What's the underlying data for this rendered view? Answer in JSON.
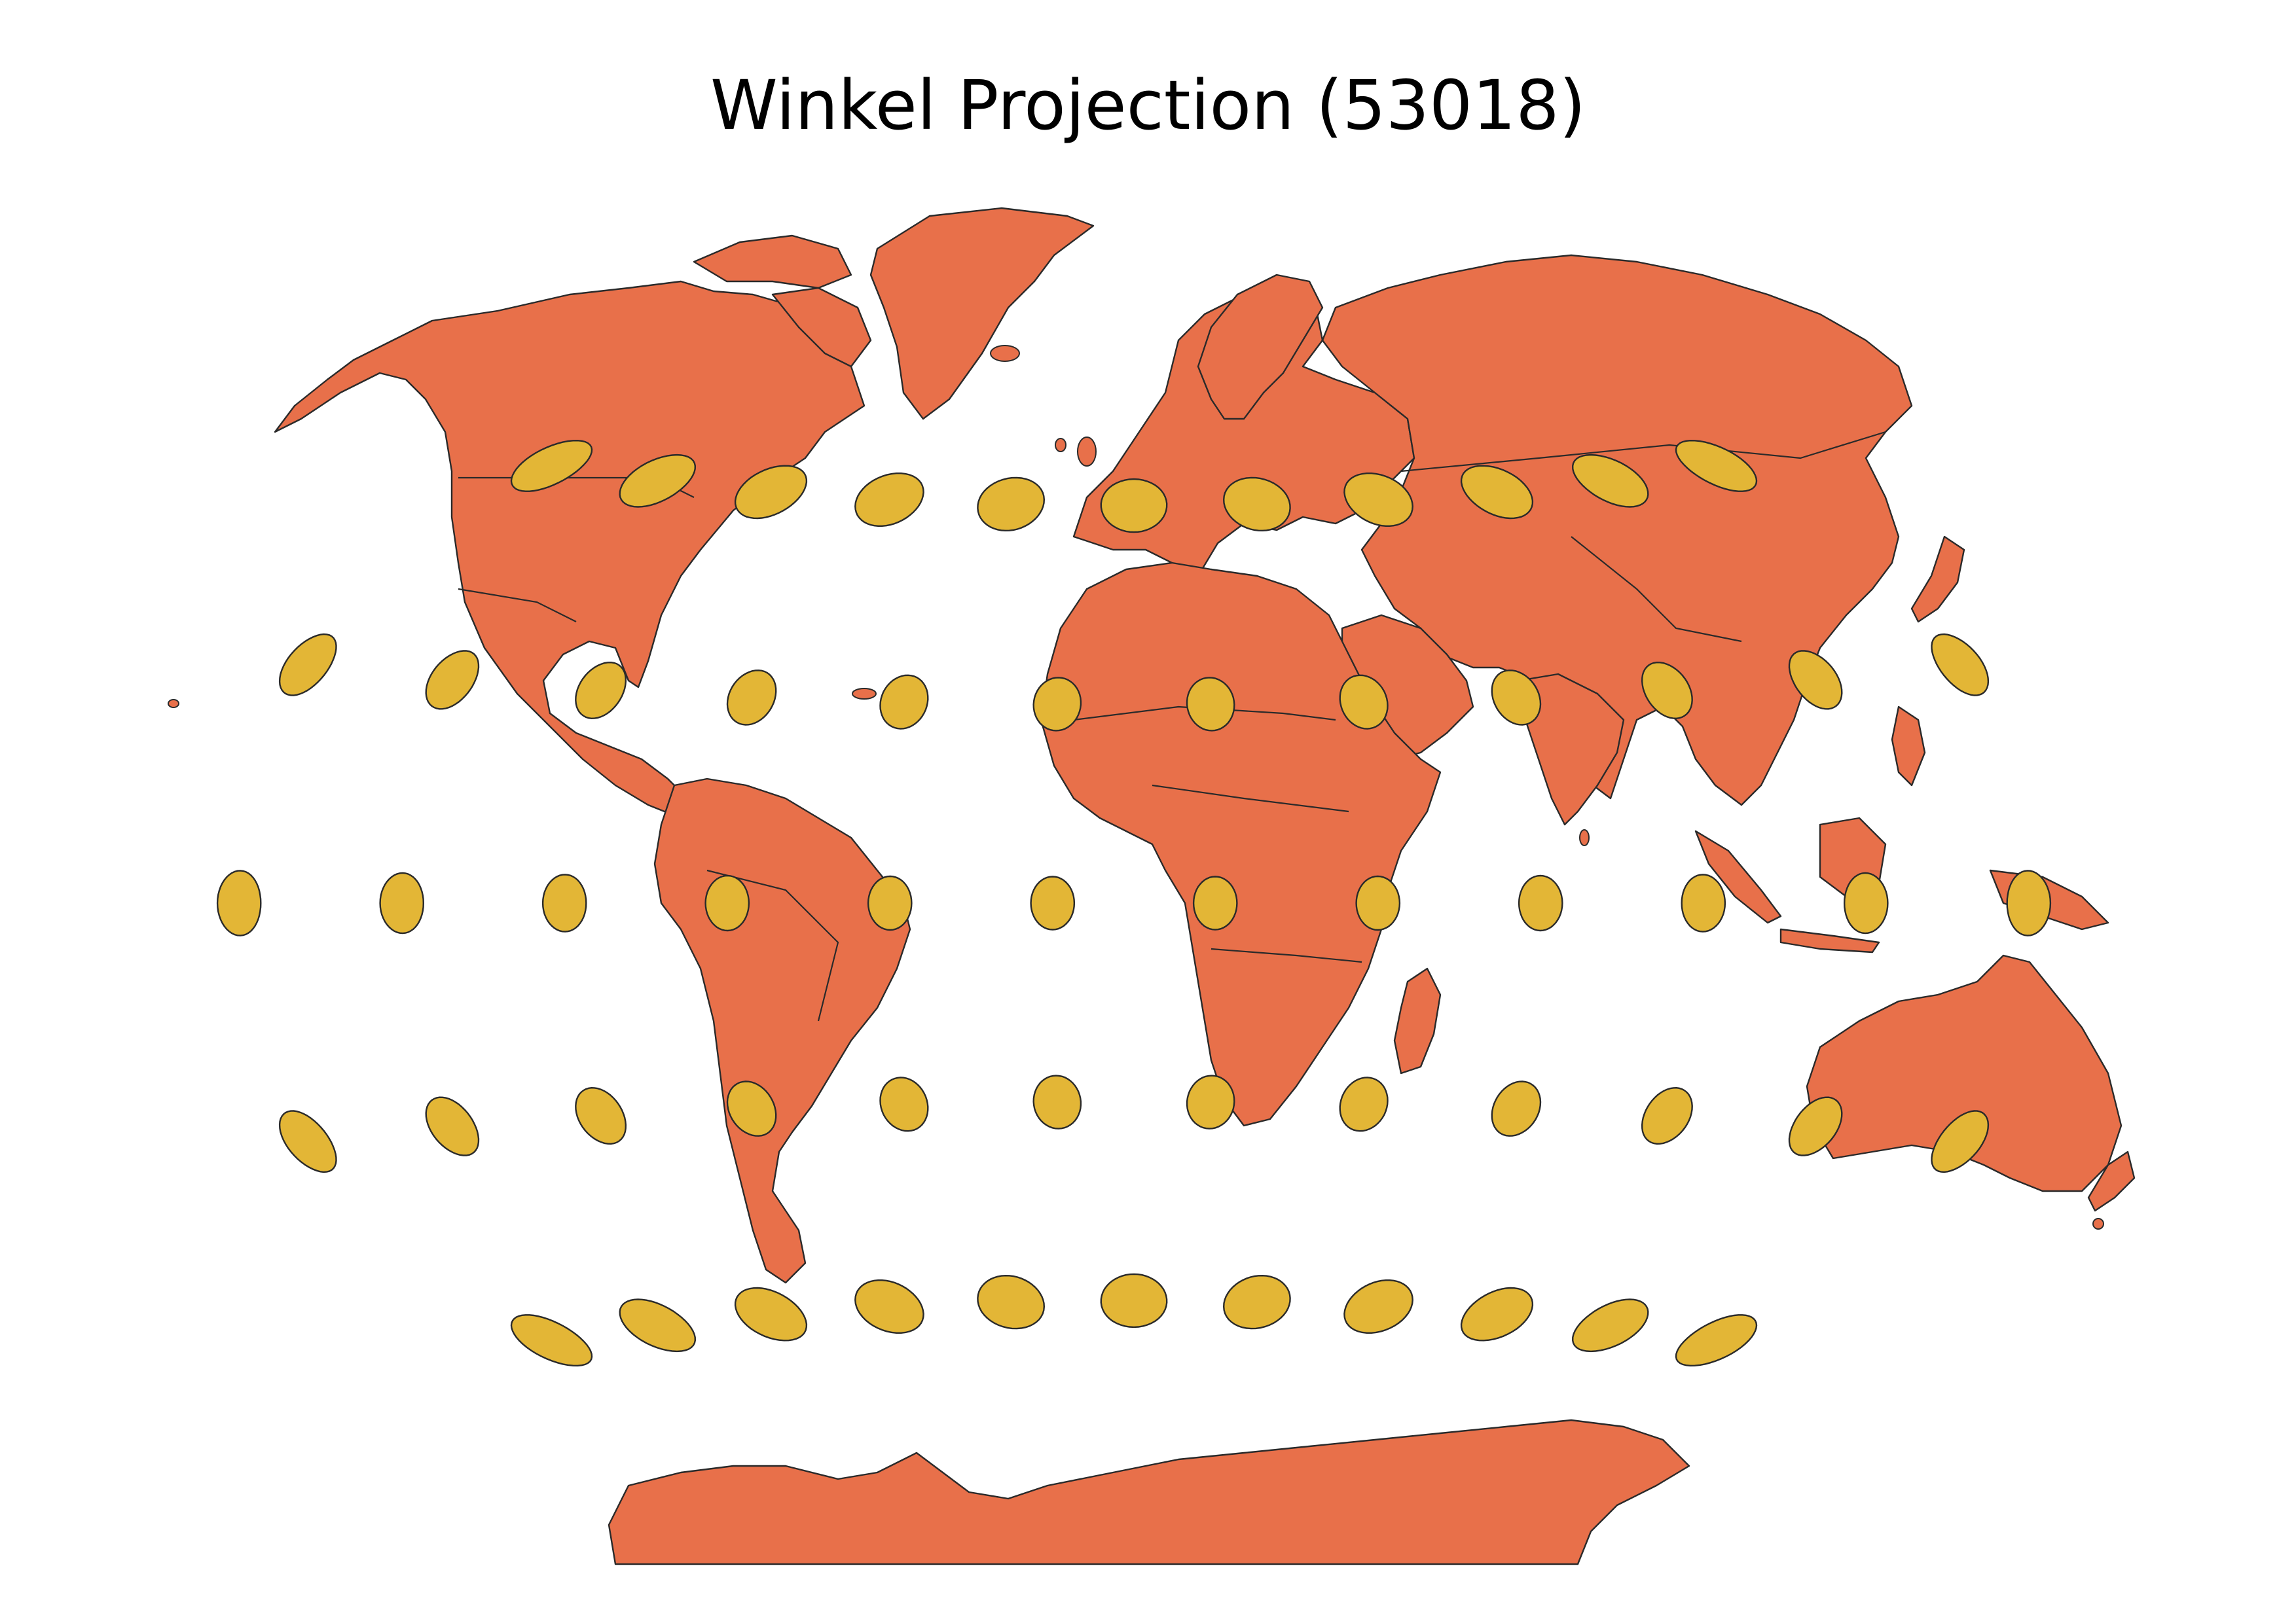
{
  "title": "Winkel Projection (53018)",
  "colors": {
    "land": "#E8704A",
    "tissot": "#E3B636",
    "outline": "#2a2a2a",
    "background": "#ffffff"
  },
  "tissot_grid": {
    "indicatrix_radius_deg": 4,
    "rows": [
      {
        "lat": 60,
        "lons": [
          -150,
          -120,
          -90,
          -60,
          -30,
          0,
          30,
          60,
          90,
          120,
          150
        ]
      },
      {
        "lat": 30,
        "lons": [
          -165,
          -135,
          -105,
          -75,
          -45,
          -15,
          15,
          45,
          75,
          105,
          135,
          165
        ]
      },
      {
        "lat": 0,
        "lons": [
          -165,
          -135,
          -105,
          -75,
          -45,
          -15,
          15,
          45,
          75,
          105,
          135,
          165
        ]
      },
      {
        "lat": -30,
        "lons": [
          -165,
          -135,
          -105,
          -75,
          -45,
          -15,
          15,
          45,
          75,
          105,
          135,
          165
        ]
      },
      {
        "lat": -60,
        "lons": [
          -150,
          -120,
          -90,
          -60,
          -30,
          0,
          30,
          60,
          90,
          120,
          150
        ]
      }
    ]
  }
}
